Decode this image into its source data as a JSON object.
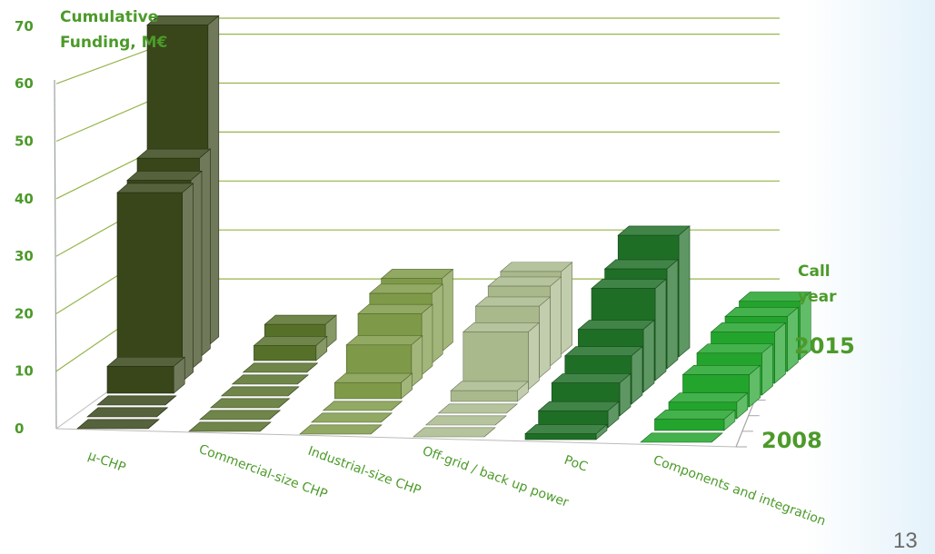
{
  "page_number": "13",
  "chart_data": {
    "type": "bar",
    "style": "3d-stacked-depth",
    "ylabel_line1": "Cumulative",
    "ylabel_line2": "Funding, M€",
    "depth_axis_label_line1": "Call",
    "depth_axis_label_line2": "year",
    "depth_first_label": "2008",
    "depth_last_label": "2015",
    "ylim": [
      0,
      70
    ],
    "yticks": [
      "0",
      "10",
      "20",
      "30",
      "40",
      "50",
      "60",
      "70"
    ],
    "grid": true,
    "categories": [
      "µ-CHP",
      "Commercial-size CHP",
      "Industrial-size CHP",
      "Off-grid / back up power",
      "PoC",
      "Components and integration"
    ],
    "colors": [
      "#38461a",
      "#56702a",
      "#7e9a48",
      "#a9b98c",
      "#1f6e26",
      "#23a42c"
    ],
    "values": [
      [
        0,
        0,
        0,
        5,
        36,
        37,
        40,
        66
      ],
      [
        0,
        0,
        0,
        0,
        0,
        0,
        3,
        5
      ],
      [
        0,
        0,
        0,
        3,
        8,
        12,
        14,
        15
      ],
      [
        0,
        0,
        0,
        2,
        11,
        14,
        16,
        17
      ],
      [
        1,
        3,
        6,
        9,
        12,
        18,
        20,
        25
      ],
      [
        0,
        2,
        3,
        6,
        8,
        10,
        11,
        12
      ]
    ]
  }
}
